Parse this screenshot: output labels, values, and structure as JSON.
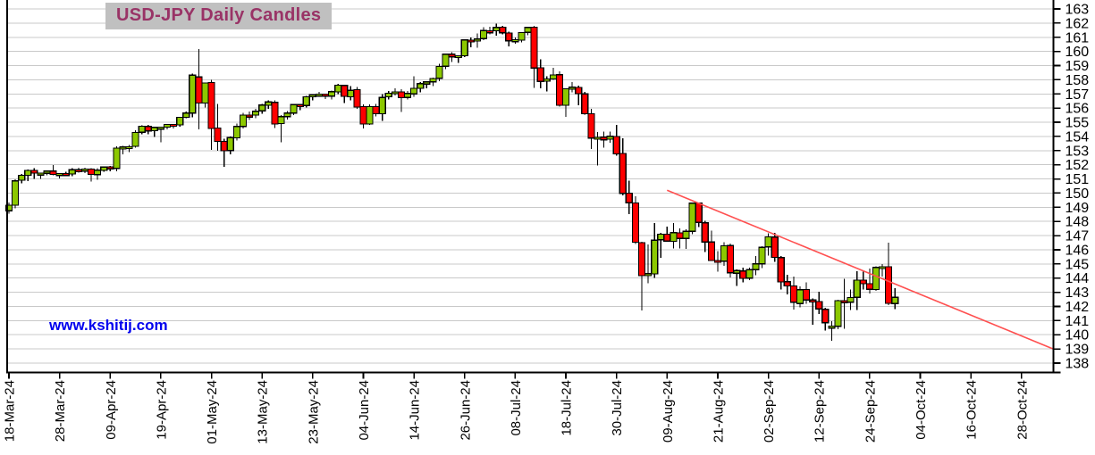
{
  "chart": {
    "title": "USD-JPY Daily Candles",
    "title_color": "#993366",
    "title_bg": "#c0c0c0",
    "watermark": "www.kshitij.com",
    "watermark_color": "#0000ee"
  },
  "chart_data": {
    "type": "candlestick",
    "title": "USD-JPY Daily Candles",
    "xlabel": "",
    "ylabel": "",
    "ylim": [
      138,
      163
    ],
    "y_tick_step": 1,
    "y_ticks": [
      138,
      139,
      140,
      141,
      142,
      143,
      144,
      145,
      146,
      147,
      148,
      149,
      150,
      151,
      152,
      153,
      154,
      155,
      156,
      157,
      158,
      159,
      160,
      161,
      162,
      163
    ],
    "grid": "horizontal",
    "legend": "none",
    "x_tick_labels": [
      "18-Mar-24",
      "28-Mar-24",
      "09-Apr-24",
      "19-Apr-24",
      "01-May-24",
      "13-May-24",
      "23-May-24",
      "04-Jun-24",
      "14-Jun-24",
      "26-Jun-24",
      "08-Jul-24",
      "18-Jul-24",
      "30-Jul-24",
      "09-Aug-24",
      "21-Aug-24",
      "02-Sep-24",
      "12-Sep-24",
      "24-Sep-24",
      "04-Oct-24",
      "16-Oct-24",
      "28-Oct-24"
    ],
    "x_tick_interval_days": 8,
    "x_axis_total_slots": 166,
    "colors": {
      "up": "#8cc800",
      "down": "#ff0000",
      "wick": "#000000",
      "candle_border": "#000000",
      "grid": "#c9c9c9",
      "axis": "#000000",
      "label": "#000000",
      "trendline": "#ff5050"
    },
    "trendline": {
      "from_index": 104,
      "from_price": 150.2,
      "to_index": 165,
      "to_price": 139.0
    },
    "ohlc_columns": [
      "date",
      "open",
      "high",
      "low",
      "close"
    ],
    "ohlc": [
      [
        "18-Mar-24",
        148.75,
        149.35,
        148.55,
        149.15
      ],
      [
        "19-Mar-24",
        149.15,
        150.96,
        148.91,
        150.86
      ],
      [
        "20-Mar-24",
        150.9,
        151.35,
        150.7,
        151.26
      ],
      [
        "21-Mar-24",
        151.25,
        151.65,
        150.85,
        151.61
      ],
      [
        "22-Mar-24",
        151.6,
        151.75,
        151.0,
        151.41
      ],
      [
        "25-Mar-24",
        151.4,
        151.45,
        151.0,
        151.41
      ],
      [
        "26-Mar-24",
        151.4,
        151.57,
        151.25,
        151.56
      ],
      [
        "27-Mar-24",
        151.55,
        151.97,
        151.25,
        151.31
      ],
      [
        "28-Mar-24",
        151.3,
        151.42,
        151.05,
        151.38
      ],
      [
        "29-Mar-24",
        151.38,
        151.5,
        151.2,
        151.35
      ],
      [
        "01-Apr-24",
        151.35,
        151.77,
        151.2,
        151.65
      ],
      [
        "02-Apr-24",
        151.65,
        151.8,
        151.45,
        151.55
      ],
      [
        "03-Apr-24",
        151.55,
        151.8,
        151.4,
        151.7
      ],
      [
        "04-Apr-24",
        151.7,
        151.75,
        150.8,
        151.31
      ],
      [
        "05-Apr-24",
        151.3,
        151.75,
        150.95,
        151.62
      ],
      [
        "08-Apr-24",
        151.6,
        151.9,
        151.5,
        151.84
      ],
      [
        "09-Apr-24",
        151.85,
        151.93,
        151.55,
        151.76
      ],
      [
        "10-Apr-24",
        151.75,
        153.3,
        151.55,
        153.17
      ],
      [
        "11-Apr-24",
        153.2,
        153.32,
        152.75,
        153.25
      ],
      [
        "12-Apr-24",
        153.25,
        153.39,
        152.9,
        153.28
      ],
      [
        "15-Apr-24",
        153.3,
        154.45,
        153.2,
        154.28
      ],
      [
        "16-Apr-24",
        154.3,
        154.79,
        154.15,
        154.72
      ],
      [
        "17-Apr-24",
        154.7,
        154.8,
        154.15,
        154.39
      ],
      [
        "18-Apr-24",
        154.4,
        154.7,
        153.95,
        154.64
      ],
      [
        "19-Apr-24",
        154.65,
        154.7,
        153.6,
        154.65
      ],
      [
        "22-Apr-24",
        154.65,
        154.86,
        154.5,
        154.84
      ],
      [
        "23-Apr-24",
        154.85,
        154.88,
        154.55,
        154.82
      ],
      [
        "24-Apr-24",
        154.82,
        155.37,
        154.7,
        155.35
      ],
      [
        "25-Apr-24",
        155.35,
        155.75,
        155.3,
        155.65
      ],
      [
        "26-Apr-24",
        155.65,
        158.44,
        155.35,
        158.33
      ],
      [
        "29-Apr-24",
        158.2,
        160.17,
        154.51,
        156.35
      ],
      [
        "30-Apr-24",
        156.35,
        157.8,
        156.05,
        157.78
      ],
      [
        "01-May-24",
        157.8,
        157.98,
        153.04,
        154.57
      ],
      [
        "02-May-24",
        154.6,
        156.28,
        153.0,
        153.64
      ],
      [
        "03-May-24",
        153.64,
        153.85,
        151.86,
        152.98
      ],
      [
        "06-May-24",
        153.0,
        154.01,
        152.75,
        153.92
      ],
      [
        "07-May-24",
        153.9,
        154.9,
        153.7,
        154.7
      ],
      [
        "08-May-24",
        154.7,
        155.66,
        154.55,
        155.51
      ],
      [
        "09-May-24",
        155.5,
        155.75,
        155.15,
        155.48
      ],
      [
        "10-May-24",
        155.5,
        155.95,
        155.3,
        155.78
      ],
      [
        "13-May-24",
        155.8,
        156.3,
        155.6,
        156.21
      ],
      [
        "14-May-24",
        156.2,
        156.56,
        155.95,
        156.43
      ],
      [
        "15-May-24",
        156.4,
        156.55,
        154.6,
        154.88
      ],
      [
        "16-May-24",
        154.9,
        155.5,
        153.6,
        155.4
      ],
      [
        "17-May-24",
        155.4,
        155.8,
        155.2,
        155.65
      ],
      [
        "20-May-24",
        155.65,
        156.3,
        155.5,
        156.25
      ],
      [
        "21-May-24",
        156.25,
        156.3,
        155.85,
        156.18
      ],
      [
        "22-May-24",
        156.18,
        156.85,
        156.05,
        156.8
      ],
      [
        "23-May-24",
        156.8,
        157.0,
        156.55,
        156.94
      ],
      [
        "24-May-24",
        156.95,
        157.15,
        156.8,
        156.98
      ],
      [
        "27-May-24",
        156.98,
        157.0,
        156.65,
        156.86
      ],
      [
        "28-May-24",
        156.85,
        157.25,
        156.6,
        157.16
      ],
      [
        "29-May-24",
        157.15,
        157.7,
        157.0,
        157.62
      ],
      [
        "30-May-24",
        157.6,
        157.65,
        156.35,
        156.82
      ],
      [
        "31-May-24",
        156.8,
        157.55,
        156.55,
        157.26
      ],
      [
        "03-Jun-24",
        157.3,
        157.48,
        155.95,
        156.08
      ],
      [
        "04-Jun-24",
        156.1,
        156.25,
        154.55,
        154.88
      ],
      [
        "05-Jun-24",
        154.88,
        156.25,
        154.8,
        156.1
      ],
      [
        "06-Jun-24",
        156.1,
        156.3,
        155.4,
        155.61
      ],
      [
        "07-Jun-24",
        155.6,
        157.0,
        155.1,
        156.75
      ],
      [
        "10-Jun-24",
        156.8,
        157.2,
        156.6,
        157.04
      ],
      [
        "11-Jun-24",
        157.05,
        157.4,
        156.9,
        157.15
      ],
      [
        "12-Jun-24",
        157.15,
        157.32,
        155.72,
        156.74
      ],
      [
        "13-Jun-24",
        156.75,
        157.2,
        156.6,
        157.03
      ],
      [
        "14-Jun-24",
        157.0,
        158.26,
        156.8,
        157.4
      ],
      [
        "17-Jun-24",
        157.4,
        157.85,
        157.1,
        157.72
      ],
      [
        "18-Jun-24",
        157.7,
        157.9,
        157.4,
        157.85
      ],
      [
        "19-Jun-24",
        157.85,
        158.15,
        157.55,
        158.08
      ],
      [
        "20-Jun-24",
        158.1,
        159.12,
        157.9,
        158.93
      ],
      [
        "21-Jun-24",
        158.95,
        159.84,
        158.75,
        159.8
      ],
      [
        "24-Jun-24",
        159.8,
        159.94,
        159.25,
        159.61
      ],
      [
        "25-Jun-24",
        159.6,
        159.72,
        159.2,
        159.7
      ],
      [
        "26-Jun-24",
        159.7,
        160.87,
        159.6,
        160.81
      ],
      [
        "27-Jun-24",
        160.8,
        161.0,
        160.3,
        160.76
      ],
      [
        "28-Jun-24",
        160.75,
        161.27,
        160.25,
        160.88
      ],
      [
        "01-Jul-24",
        160.9,
        161.72,
        160.8,
        161.47
      ],
      [
        "02-Jul-24",
        161.45,
        161.74,
        161.2,
        161.44
      ],
      [
        "03-Jul-24",
        161.45,
        161.95,
        161.1,
        161.69
      ],
      [
        "04-Jul-24",
        161.7,
        161.8,
        161.2,
        161.31
      ],
      [
        "05-Jul-24",
        161.3,
        161.4,
        160.35,
        160.75
      ],
      [
        "08-Jul-24",
        160.8,
        161.0,
        160.55,
        160.82
      ],
      [
        "09-Jul-24",
        160.8,
        161.35,
        160.65,
        161.33
      ],
      [
        "10-Jul-24",
        161.35,
        161.7,
        161.15,
        161.69
      ],
      [
        "11-Jul-24",
        161.7,
        161.81,
        157.44,
        158.83
      ],
      [
        "12-Jul-24",
        158.85,
        159.45,
        157.38,
        157.88
      ],
      [
        "15-Jul-24",
        157.9,
        158.25,
        157.17,
        158.06
      ],
      [
        "16-Jul-24",
        158.05,
        158.85,
        158.0,
        158.34
      ],
      [
        "17-Jul-24",
        158.35,
        158.6,
        156.11,
        156.2
      ],
      [
        "18-Jul-24",
        156.2,
        157.4,
        155.38,
        157.37
      ],
      [
        "19-Jul-24",
        157.35,
        157.85,
        157.1,
        157.48
      ],
      [
        "22-Jul-24",
        157.45,
        157.6,
        156.2,
        157.02
      ],
      [
        "23-Jul-24",
        157.0,
        157.15,
        155.55,
        155.6
      ],
      [
        "24-Jul-24",
        155.6,
        155.95,
        153.11,
        153.89
      ],
      [
        "25-Jul-24",
        153.9,
        154.3,
        151.94,
        153.94
      ],
      [
        "26-Jul-24",
        153.95,
        154.35,
        153.2,
        153.76
      ],
      [
        "29-Jul-24",
        153.8,
        154.35,
        153.55,
        154.01
      ],
      [
        "30-Jul-24",
        154.0,
        154.8,
        152.65,
        152.77
      ],
      [
        "31-Jul-24",
        152.8,
        153.88,
        149.83,
        149.98
      ],
      [
        "01-Aug-24",
        150.0,
        150.88,
        148.51,
        149.32
      ],
      [
        "02-Aug-24",
        149.3,
        149.77,
        146.42,
        146.53
      ],
      [
        "05-Aug-24",
        146.5,
        146.56,
        141.7,
        144.18
      ],
      [
        "06-Aug-24",
        144.2,
        146.36,
        143.63,
        144.31
      ],
      [
        "07-Aug-24",
        144.3,
        147.9,
        144.0,
        146.68
      ],
      [
        "08-Aug-24",
        146.7,
        147.2,
        145.43,
        147.1
      ],
      [
        "09-Aug-24",
        147.1,
        147.65,
        146.55,
        146.61
      ],
      [
        "12-Aug-24",
        146.6,
        147.9,
        146.1,
        147.21
      ],
      [
        "13-Aug-24",
        147.2,
        147.5,
        146.1,
        146.8
      ],
      [
        "14-Aug-24",
        146.8,
        147.45,
        146.05,
        147.3
      ],
      [
        "15-Aug-24",
        147.3,
        149.35,
        147.1,
        149.29
      ],
      [
        "16-Aug-24",
        149.3,
        149.35,
        147.6,
        147.94
      ],
      [
        "19-Aug-24",
        147.9,
        148.05,
        145.85,
        146.55
      ],
      [
        "20-Aug-24",
        146.55,
        147.35,
        145.2,
        145.25
      ],
      [
        "21-Aug-24",
        145.25,
        145.9,
        144.45,
        145.2
      ],
      [
        "22-Aug-24",
        145.2,
        146.52,
        144.85,
        146.28
      ],
      [
        "23-Aug-24",
        146.3,
        146.45,
        144.05,
        144.37
      ],
      [
        "26-Aug-24",
        144.35,
        144.62,
        143.45,
        144.53
      ],
      [
        "27-Aug-24",
        144.5,
        144.75,
        143.7,
        143.99
      ],
      [
        "28-Aug-24",
        144.0,
        144.75,
        143.85,
        144.6
      ],
      [
        "29-Aug-24",
        144.6,
        145.55,
        144.2,
        145.0
      ],
      [
        "30-Aug-24",
        145.0,
        146.25,
        144.7,
        146.17
      ],
      [
        "02-Sep-24",
        146.2,
        147.16,
        145.6,
        146.91
      ],
      [
        "03-Sep-24",
        146.9,
        147.2,
        145.15,
        145.47
      ],
      [
        "04-Sep-24",
        145.45,
        145.55,
        143.2,
        143.73
      ],
      [
        "05-Sep-24",
        143.75,
        144.25,
        142.85,
        143.45
      ],
      [
        "06-Sep-24",
        143.45,
        144.1,
        141.78,
        142.3
      ],
      [
        "09-Sep-24",
        142.2,
        143.4,
        141.95,
        143.18
      ],
      [
        "10-Sep-24",
        143.2,
        143.7,
        142.2,
        142.45
      ],
      [
        "11-Sep-24",
        142.45,
        142.55,
        140.71,
        142.35
      ],
      [
        "12-Sep-24",
        142.35,
        143.04,
        141.45,
        141.83
      ],
      [
        "13-Sep-24",
        141.8,
        141.9,
        140.29,
        140.85
      ],
      [
        "16-Sep-24",
        140.6,
        140.95,
        139.58,
        140.61
      ],
      [
        "17-Sep-24",
        140.6,
        142.46,
        140.4,
        142.4
      ],
      [
        "18-Sep-24",
        142.4,
        143.95,
        140.44,
        142.29
      ],
      [
        "19-Sep-24",
        142.3,
        143.2,
        141.75,
        142.63
      ],
      [
        "20-Sep-24",
        142.65,
        144.5,
        141.74,
        143.85
      ],
      [
        "23-Sep-24",
        143.85,
        144.46,
        143.2,
        143.61
      ],
      [
        "24-Sep-24",
        143.6,
        144.67,
        142.9,
        143.21
      ],
      [
        "25-Sep-24",
        143.2,
        144.84,
        143.1,
        144.75
      ],
      [
        "26-Sep-24",
        144.75,
        145.0,
        144.1,
        144.81
      ],
      [
        "27-Sep-24",
        144.8,
        146.49,
        142.09,
        142.21
      ],
      [
        "30-Sep-24",
        142.2,
        143.3,
        141.8,
        142.65
      ]
    ]
  }
}
